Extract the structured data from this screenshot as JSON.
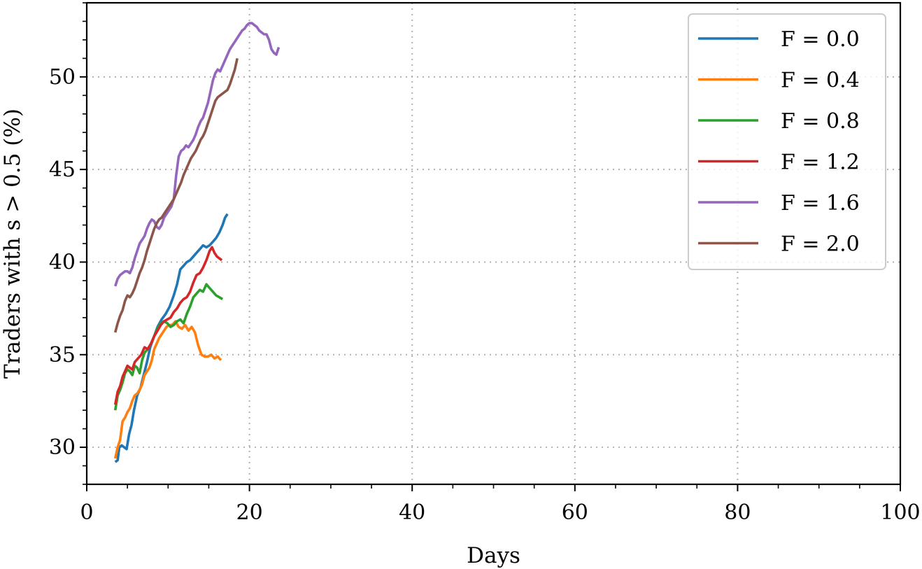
{
  "chart_data": {
    "type": "line",
    "title": "",
    "xlabel": "Days",
    "ylabel": "Traders with s > 0.5 (%)",
    "xlim": [
      0,
      100
    ],
    "ylim": [
      28,
      54
    ],
    "xticks": [
      0,
      20,
      40,
      60,
      80,
      100
    ],
    "yticks": [
      30,
      35,
      40,
      45,
      50
    ],
    "grid": true,
    "legend_placement": "top-right",
    "series": [
      {
        "name": "F = 0.0",
        "color": "#1f77b4",
        "x": [
          3.5,
          3.8,
          4.0,
          4.3,
          4.6,
          4.9,
          5.2,
          5.5,
          5.8,
          6.2,
          6.6,
          7.0,
          7.4,
          7.8,
          8.2,
          8.7,
          9.2,
          9.7,
          10.2,
          10.7,
          11.1,
          11.5,
          11.9,
          12.3,
          12.7,
          13.1,
          13.5,
          13.9,
          14.3,
          14.7,
          15.1,
          15.5,
          15.9,
          16.3,
          16.7,
          17.0,
          17.3
        ],
        "y": [
          29.2,
          29.3,
          30.0,
          30.1,
          30.0,
          29.9,
          30.7,
          31.2,
          32.0,
          32.8,
          33.2,
          33.9,
          34.6,
          35.4,
          35.9,
          36.5,
          36.9,
          37.2,
          37.6,
          38.2,
          38.8,
          39.6,
          39.8,
          40.0,
          40.1,
          40.3,
          40.5,
          40.7,
          40.9,
          40.8,
          40.9,
          41.1,
          41.3,
          41.6,
          42.0,
          42.4,
          42.6
        ]
      },
      {
        "name": "F = 0.4",
        "color": "#ff7f0e",
        "x": [
          3.5,
          3.8,
          4.1,
          4.4,
          4.7,
          5.0,
          5.3,
          5.6,
          5.9,
          6.2,
          6.5,
          6.8,
          7.1,
          7.4,
          7.7,
          8.0,
          8.3,
          8.6,
          8.9,
          9.2,
          9.5,
          9.8,
          10.1,
          10.5,
          10.9,
          11.3,
          11.7,
          12.1,
          12.5,
          12.9,
          13.3,
          13.7,
          14.1,
          14.5,
          14.9,
          15.3,
          15.7,
          16.1,
          16.5
        ],
        "y": [
          29.4,
          30.0,
          30.4,
          31.4,
          31.6,
          31.9,
          32.1,
          32.5,
          32.8,
          32.9,
          33.1,
          33.4,
          33.9,
          34.1,
          34.3,
          34.7,
          35.3,
          35.6,
          35.9,
          36.1,
          36.3,
          36.5,
          36.6,
          36.6,
          36.8,
          36.5,
          36.4,
          36.6,
          36.3,
          36.5,
          36.2,
          35.5,
          35.0,
          34.9,
          34.9,
          35.0,
          34.8,
          34.9,
          34.7
        ]
      },
      {
        "name": "F = 0.8",
        "color": "#2ca02c",
        "x": [
          3.5,
          3.8,
          4.1,
          4.4,
          4.7,
          5.0,
          5.3,
          5.6,
          5.9,
          6.2,
          6.5,
          6.8,
          7.1,
          7.5,
          7.9,
          8.3,
          8.7,
          9.1,
          9.5,
          9.9,
          10.3,
          10.7,
          11.1,
          11.5,
          11.9,
          12.3,
          12.7,
          13.1,
          13.5,
          13.9,
          14.3,
          14.7,
          15.1,
          15.5,
          15.9,
          16.3,
          16.7
        ],
        "y": [
          32.0,
          32.8,
          33.1,
          33.5,
          34.0,
          34.2,
          34.1,
          33.9,
          34.4,
          34.3,
          34.0,
          34.7,
          35.1,
          35.3,
          35.6,
          36.0,
          36.4,
          36.7,
          36.8,
          36.7,
          36.5,
          36.6,
          36.8,
          36.9,
          36.7,
          37.2,
          37.6,
          38.1,
          38.3,
          38.5,
          38.4,
          38.8,
          38.6,
          38.4,
          38.2,
          38.1,
          38.0
        ]
      },
      {
        "name": "F = 1.2",
        "color": "#d62728",
        "x": [
          3.5,
          3.8,
          4.1,
          4.4,
          4.7,
          5.0,
          5.3,
          5.6,
          5.9,
          6.3,
          6.7,
          7.1,
          7.5,
          7.9,
          8.3,
          8.7,
          9.1,
          9.5,
          9.9,
          10.3,
          10.7,
          11.1,
          11.5,
          11.9,
          12.3,
          12.7,
          13.1,
          13.5,
          13.9,
          14.3,
          14.7,
          15.1,
          15.4,
          15.7,
          16.0,
          16.3,
          16.6
        ],
        "y": [
          32.3,
          33.0,
          33.3,
          33.8,
          34.1,
          34.4,
          34.3,
          34.2,
          34.6,
          34.8,
          35.0,
          35.4,
          35.3,
          35.6,
          36.0,
          36.3,
          36.6,
          36.8,
          36.9,
          37.0,
          37.3,
          37.5,
          37.8,
          38.0,
          38.1,
          38.4,
          38.9,
          39.3,
          39.4,
          39.7,
          40.1,
          40.6,
          40.8,
          40.5,
          40.3,
          40.2,
          40.1
        ]
      },
      {
        "name": "F = 1.6",
        "color": "#9467bd",
        "x": [
          3.5,
          3.8,
          4.1,
          4.4,
          4.7,
          5.0,
          5.3,
          5.6,
          5.9,
          6.2,
          6.5,
          6.8,
          7.1,
          7.4,
          7.7,
          8.0,
          8.3,
          8.6,
          8.9,
          9.2,
          9.5,
          9.8,
          10.1,
          10.4,
          10.7,
          11.0,
          11.3,
          11.6,
          11.9,
          12.2,
          12.5,
          12.8,
          13.1,
          13.4,
          13.7,
          14.0,
          14.3,
          14.6,
          14.9,
          15.2,
          15.5,
          15.8,
          16.1,
          16.4,
          16.7,
          17.0,
          17.3,
          17.6,
          17.9,
          18.2,
          18.5,
          18.8,
          19.1,
          19.4,
          19.7,
          20.0,
          20.3,
          20.6,
          20.9,
          21.2,
          21.5,
          21.8,
          22.1,
          22.4,
          22.7,
          23.0,
          23.3,
          23.6
        ],
        "y": [
          38.7,
          39.1,
          39.3,
          39.4,
          39.5,
          39.5,
          39.4,
          39.7,
          40.2,
          40.6,
          41.0,
          41.2,
          41.4,
          41.8,
          42.1,
          42.3,
          42.2,
          41.9,
          41.8,
          42.0,
          42.4,
          42.6,
          42.8,
          43.0,
          43.4,
          44.7,
          45.7,
          46.0,
          46.1,
          46.3,
          46.2,
          46.4,
          46.6,
          46.9,
          47.3,
          47.6,
          47.8,
          48.2,
          48.6,
          49.2,
          49.8,
          50.2,
          50.4,
          50.3,
          50.6,
          50.9,
          51.2,
          51.5,
          51.7,
          51.9,
          52.1,
          52.3,
          52.5,
          52.6,
          52.8,
          52.9,
          52.9,
          52.8,
          52.7,
          52.5,
          52.4,
          52.3,
          52.3,
          52.0,
          51.5,
          51.3,
          51.2,
          51.6
        ]
      },
      {
        "name": "F = 2.0",
        "color": "#8c564b",
        "x": [
          3.5,
          3.8,
          4.1,
          4.4,
          4.7,
          5.0,
          5.3,
          5.6,
          5.9,
          6.2,
          6.5,
          6.8,
          7.1,
          7.4,
          7.7,
          8.0,
          8.3,
          8.6,
          8.9,
          9.2,
          9.5,
          9.8,
          10.1,
          10.4,
          10.7,
          11.0,
          11.3,
          11.6,
          11.9,
          12.2,
          12.5,
          12.8,
          13.1,
          13.4,
          13.7,
          14.0,
          14.3,
          14.6,
          14.9,
          15.2,
          15.5,
          15.8,
          16.1,
          16.4,
          16.7,
          17.0,
          17.3,
          17.6,
          17.9,
          18.2,
          18.5
        ],
        "y": [
          36.2,
          36.7,
          37.1,
          37.4,
          37.9,
          38.2,
          38.1,
          38.3,
          38.6,
          39.0,
          39.4,
          39.7,
          40.1,
          40.6,
          41.0,
          41.4,
          41.8,
          42.1,
          42.3,
          42.4,
          42.6,
          42.8,
          43.0,
          43.2,
          43.4,
          43.7,
          44.0,
          44.3,
          44.7,
          45.0,
          45.3,
          45.6,
          45.8,
          46.0,
          46.3,
          46.6,
          46.8,
          47.1,
          47.5,
          47.9,
          48.3,
          48.7,
          48.9,
          49.0,
          49.1,
          49.2,
          49.3,
          49.6,
          50.0,
          50.4,
          51.0
        ]
      }
    ]
  }
}
